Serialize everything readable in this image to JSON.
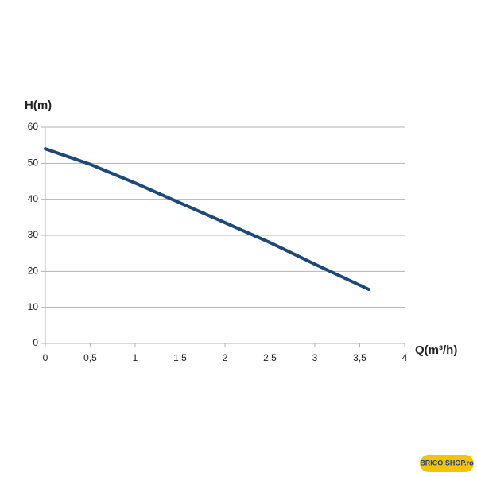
{
  "chart_data": {
    "type": "line",
    "y_label": "H(m)",
    "x_label": "Q(m³/h)",
    "x": [
      0,
      0.5,
      1,
      1.5,
      2,
      2.5,
      3,
      3.6
    ],
    "series": [
      {
        "name": "H",
        "color": "#1b4a7a",
        "values": [
          54,
          49.7,
          44.5,
          39,
          33.5,
          28,
          22,
          15
        ]
      }
    ],
    "xlim": [
      0,
      4
    ],
    "xticks": [
      0,
      {
        "value": 0.5,
        "label": "0,5"
      },
      1,
      {
        "value": 1.5,
        "label": "1,5"
      },
      2,
      {
        "value": 2.5,
        "label": "2,5"
      },
      3,
      {
        "value": 3.5,
        "label": "3,5"
      },
      4
    ],
    "ylim": [
      0,
      60
    ],
    "yticks": [
      0,
      10,
      20,
      30,
      40,
      50,
      60
    ],
    "grid": true
  },
  "logo": "BRICO SHOP.ro"
}
